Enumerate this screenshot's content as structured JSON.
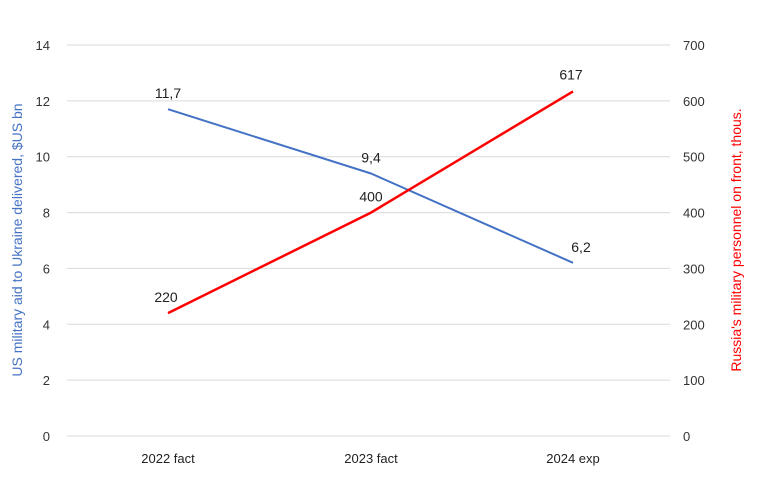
{
  "chart_data": {
    "type": "line",
    "categories": [
      "2022 fact",
      "2023 fact",
      "2024 exp"
    ],
    "series": [
      {
        "name": "US military aid to Ukraine delivered, $US bn",
        "axis": "left",
        "color": "#4472c4",
        "values": [
          11.7,
          9.4,
          6.2
        ],
        "labels": [
          "11,7",
          "9,4",
          "6,2"
        ]
      },
      {
        "name": "Russia's military personnel on front, thous.",
        "axis": "right",
        "color": "#ff0000",
        "values": [
          220,
          400,
          617
        ],
        "labels": [
          "220",
          "400",
          "617"
        ]
      }
    ],
    "ylabel_left": "US military aid to Ukraine delivered, $US bn",
    "ylabel_right": "Russia's military personnel on front, thous.",
    "ylim_left": [
      0,
      14
    ],
    "yticks_left": [
      "0",
      "2",
      "4",
      "6",
      "8",
      "10",
      "12",
      "14"
    ],
    "ylim_right": [
      0,
      700
    ],
    "yticks_right": [
      "0",
      "100",
      "200",
      "300",
      "400",
      "500",
      "600",
      "700"
    ],
    "grid": true,
    "legend": "none"
  }
}
